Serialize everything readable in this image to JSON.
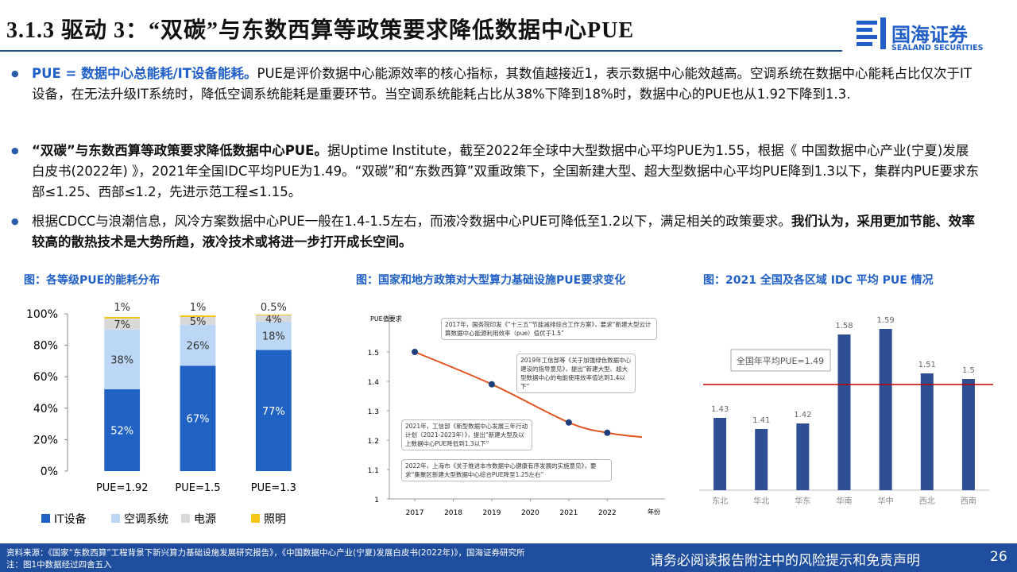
{
  "header": {
    "title": "3.1.3 驱动 3：“双碳”与东数西算等政策要求降低数据中心PUE",
    "logo_cn": "国海证券",
    "logo_en": "SEALAND SECURITIES"
  },
  "bullets": [
    [
      {
        "text": "PUE = 数据中心总能耗/IT设备能耗。",
        "style": "lead"
      },
      {
        "text": "PUE是评价数据中心能源效率的核心指标，其数值越接近1，表示数据中心能效越高。空调系统在数据中心能耗占比仅次于IT设备，在无法升级IT系统时，降低空调系统能耗是重要环节。当空调系统能耗占比从38%下降到18%时，数据中心的PUE也从1.92下降到1.3.",
        "style": "normal"
      }
    ],
    [
      {
        "text": "“双碳”与东数西算等政策要求降低数据中心PUE。",
        "style": "bold"
      },
      {
        "text": "据Uptime Institute，截至2022年全球中大型数据中心平均PUE为1.55，根据《 中国数据中心产业(宁夏)发展白皮书(2022年) 》，2021年全国IDC平均PUE为1.49。“双碳”和“东数西算”双重政策下，全国新建大型、超大型数据中心平均PUE降到1.3以下，集群内PUE要求东部≤1.25、西部≤1.2，先进示范工程≤1.15。",
        "style": "normal"
      }
    ],
    [
      {
        "text": "根据CDCC与浪潮信息，风冷方案数据中心PUE一般在1.4-1.5左右，而液冷数据中心PUE可降低至1.2以下，满足相关的政策要求。",
        "style": "normal"
      },
      {
        "text": "我们认为，采用更加节能、效率较高的散热技术是大势所趋，液冷技术或将进一步打开成长空间。",
        "style": "bold"
      }
    ]
  ],
  "chart_data": [
    {
      "type": "stacked-bar",
      "title": "图：各等级PUE的能耗分布",
      "categories": [
        "PUE=1.92",
        "PUE=1.5",
        "PUE=1.3"
      ],
      "series": [
        {
          "name": "IT设备",
          "color": "#1f62c4",
          "values": [
            52,
            67,
            77
          ],
          "value_labels": [
            "52%",
            "67%",
            "77%"
          ]
        },
        {
          "name": "空调系统",
          "color": "#bcd7f5",
          "values": [
            38,
            26,
            18
          ],
          "value_labels": [
            "38%",
            "26%",
            "18%"
          ]
        },
        {
          "name": "电源",
          "color": "#d9d9d9",
          "values": [
            7,
            5,
            4
          ],
          "value_labels": [
            "7%",
            "5%",
            "4%"
          ]
        },
        {
          "name": "照明",
          "color": "#f5c518",
          "values": [
            1,
            1,
            0.5
          ],
          "value_labels": [
            "1%",
            "1%",
            "0.5%"
          ]
        }
      ],
      "ylim": [
        0,
        100
      ],
      "yticks": [
        {
          "value": 0,
          "label": "0%"
        },
        {
          "value": 20,
          "label": "20%"
        },
        {
          "value": 40,
          "label": "40%"
        },
        {
          "value": 60,
          "label": "60%"
        },
        {
          "value": 80,
          "label": "80%"
        },
        {
          "value": 100,
          "label": "100%"
        }
      ]
    },
    {
      "type": "line",
      "title": "图：国家和地方政策对大型算力基础设施PUE要求变化",
      "y_label": "PUE值要求",
      "x_label": "年份",
      "color": "#e0541f",
      "x": [
        2017,
        2019,
        2021,
        2022,
        2022.9
      ],
      "values": [
        1.5,
        1.39,
        1.26,
        1.225,
        1.21
      ],
      "xlim": [
        2016.4,
        2023.5
      ],
      "xticks": [
        2017,
        2018,
        2019,
        2020,
        2021,
        2022
      ],
      "ylim": [
        1,
        1.5
      ],
      "yticks": [
        1,
        1.1,
        1.2,
        1.3,
        1.4,
        1.5
      ],
      "annotations": [
        "2017年，国务院印发《“十三五”节能减排综合工作方案》，要求“新建大型云计算数据中心能源利用效率（pue）值优于1.5”",
        "2019年工信部等《关于加强绿色数据中心建设的指导意见》，提出“新建大型、超大型数据中心的电能使用效率值达到1.4以下”",
        "2021年，工信部《新型数据中心发展三年行动计划（2021-2023年）》，提出“新建大型及以上数据中心PUE降低到1.3以下”",
        "2022年，上海市《关于推进本市数据中心健康有序发展的实施意见》，要求“集聚区新建大型数据中心综合PUE降至1.25左右”"
      ]
    },
    {
      "type": "bar",
      "title": "图：2021 全国及各区域 IDC 平均 PUE 情况",
      "categories": [
        "东北",
        "华北",
        "华东",
        "华南",
        "华中",
        "西北",
        "西南"
      ],
      "values": [
        1.43,
        1.41,
        1.42,
        1.58,
        1.59,
        1.51,
        1.5
      ],
      "color": "#2e4f94",
      "ylim": [
        1.3,
        1.65
      ],
      "reference": {
        "value": 1.49,
        "label": "全国年平均PUE=1.49",
        "color": "#c00000"
      }
    }
  ],
  "footer": {
    "source": "资料来源：《国家“东数西算”工程背景下新兴算力基础设施发展研究报告》，《中国数据中心产业(宁夏)发展白皮书(2022年)》，国海证券研究所",
    "note": "注：图1中数据经过四舍五入",
    "disclaimer": "请务必阅读报告附注中的风险提示和免责声明",
    "page": 26
  }
}
